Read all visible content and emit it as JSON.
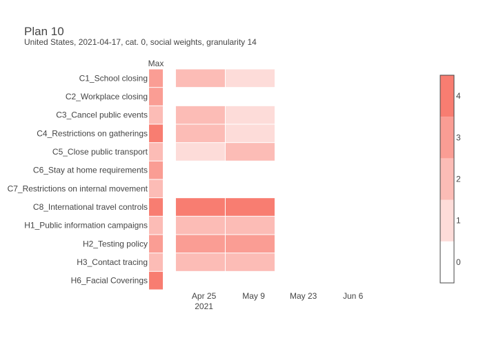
{
  "chart_data": {
    "type": "heatmap",
    "title": "Plan 10",
    "subtitle": "United States, 2021-04-17, cat. 0, social weights, granularity 14",
    "max_column_label": "Max",
    "rows": [
      "C1_School closing",
      "C2_Workplace closing",
      "C3_Cancel public events",
      "C4_Restrictions on gatherings",
      "C5_Close public transport",
      "C6_Stay at home requirements",
      "C7_Restrictions on internal movement",
      "C8_International travel controls",
      "H1_Public information campaigns",
      "H2_Testing policy",
      "H3_Contact tracing",
      "H6_Facial Coverings"
    ],
    "max_values": [
      3,
      3,
      2,
      4,
      2,
      3,
      2,
      4,
      2,
      3,
      2,
      4
    ],
    "period_starts": [
      "2021-04-17",
      "2021-05-01"
    ],
    "period_days": 14,
    "period_values": [
      [
        2,
        1
      ],
      [
        0,
        0
      ],
      [
        2,
        1
      ],
      [
        2,
        1
      ],
      [
        1,
        2
      ],
      [
        0,
        0
      ],
      [
        0,
        0
      ],
      [
        4,
        4
      ],
      [
        2,
        2
      ],
      [
        3,
        3
      ],
      [
        2,
        2
      ],
      [
        0,
        0
      ]
    ],
    "x_axis": {
      "range": [
        "2021-04-14",
        "2021-06-22"
      ],
      "ticks": [
        {
          "date": "2021-04-25",
          "label": "Apr 25",
          "sublabel": "2021"
        },
        {
          "date": "2021-05-09",
          "label": "May 9",
          "sublabel": ""
        },
        {
          "date": "2021-05-23",
          "label": "May 23",
          "sublabel": ""
        },
        {
          "date": "2021-06-06",
          "label": "Jun 6",
          "sublabel": ""
        }
      ]
    },
    "colorbar": {
      "min": 0,
      "max": 4,
      "ticks": [
        0,
        1,
        2,
        3,
        4
      ],
      "colors": [
        "#ffffff",
        "#fddcd9",
        "#fcbcb6",
        "#fa9d94",
        "#f87d71"
      ]
    },
    "grid": false
  }
}
